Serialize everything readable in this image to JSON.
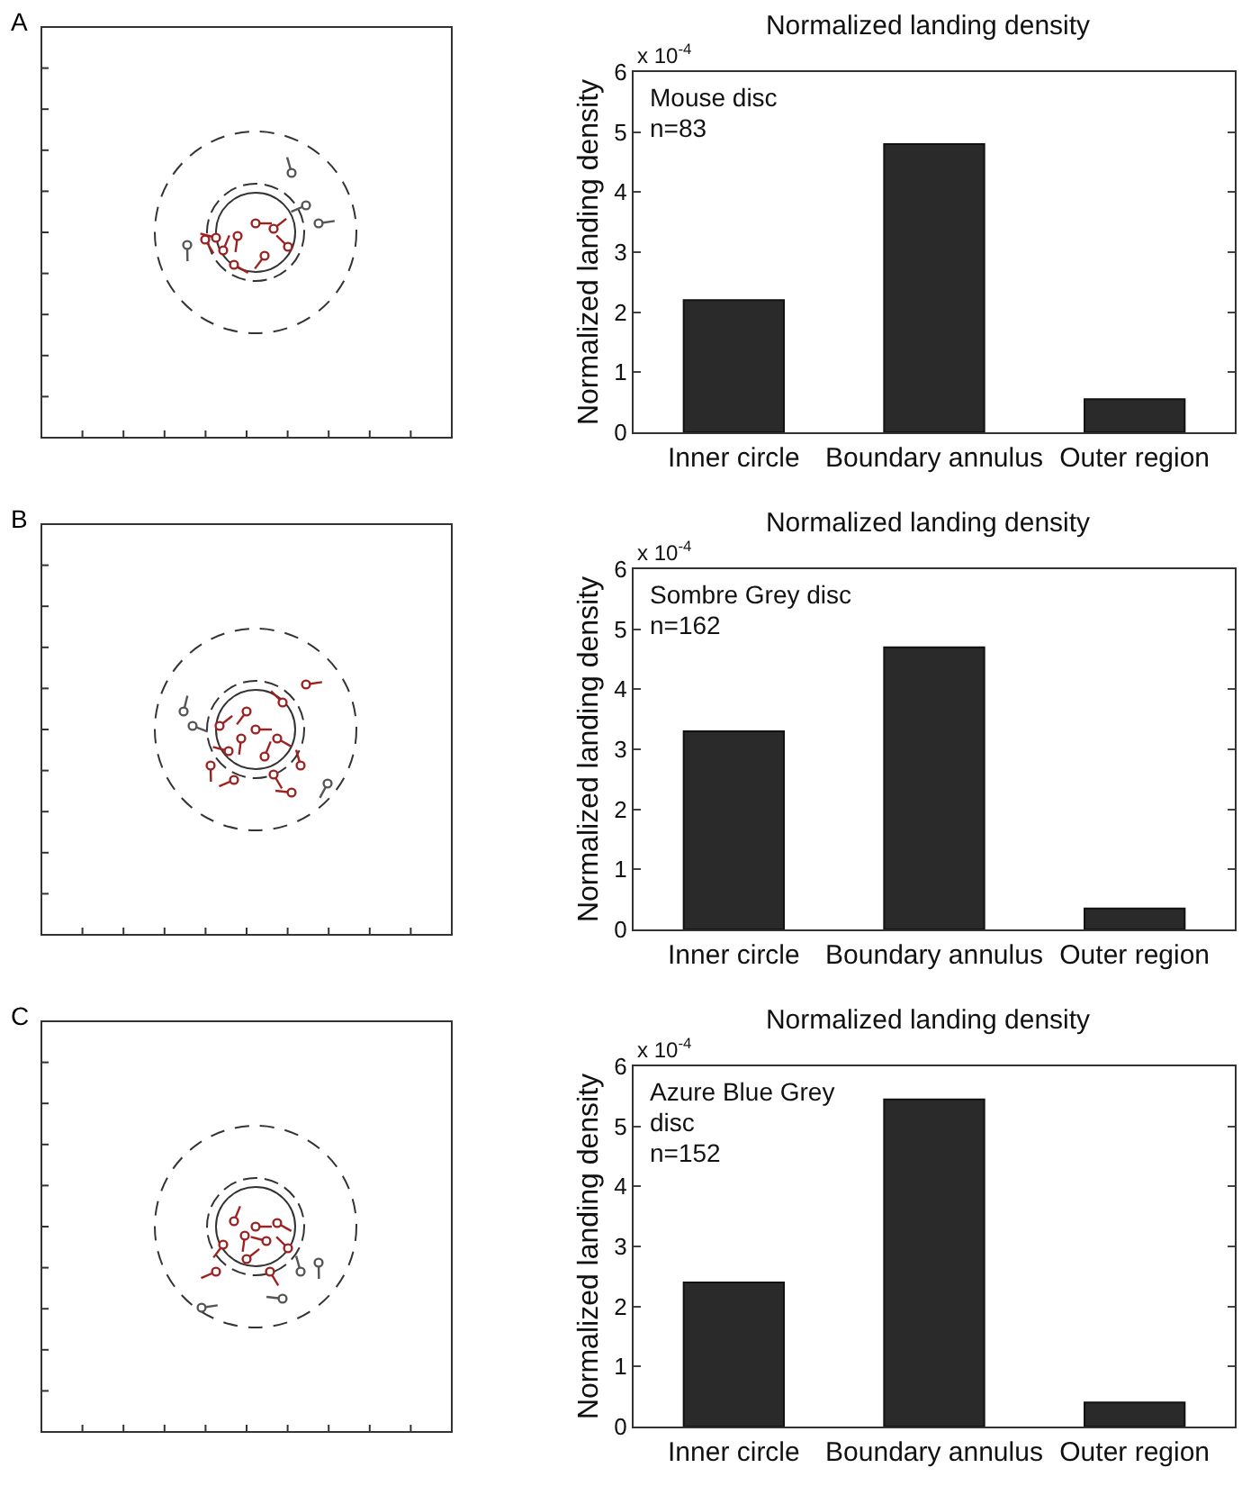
{
  "chart_data": [
    {
      "type": "bar",
      "title": "Normalized landing density",
      "ylabel": "Normalized landing density",
      "annotations": [
        "A",
        "x 10$^{-4}$",
        "Mouse disc",
        "n=83"
      ],
      "categories": [
        "Inner circle",
        "Boundary annulus",
        "Outer region"
      ],
      "values": [
        2.2,
        4.8,
        0.55
      ],
      "color": "#2a2a2a",
      "ylim": [
        0,
        6
      ],
      "yticks": [
        0,
        1,
        2,
        3,
        4,
        5,
        6
      ],
      "grid": false
    },
    {
      "type": "bar",
      "title": "Normalized landing density",
      "ylabel": "Normalized landing density",
      "annotations": [
        "B",
        "x 10$^{-4}$",
        "Sombre Grey disc",
        "n=162"
      ],
      "categories": [
        "Inner circle",
        "Boundary annulus",
        "Outer region"
      ],
      "values": [
        3.3,
        4.7,
        0.35
      ],
      "color": "#2a2a2a",
      "ylim": [
        0,
        6
      ],
      "yticks": [
        0,
        1,
        2,
        3,
        4,
        5,
        6
      ],
      "grid": false
    },
    {
      "type": "bar",
      "title": "Normalized landing density",
      "ylabel": "Normalized landing density",
      "annotations": [
        "C",
        "x 10$^{-4}$",
        "Azure Blue Grey",
        "disc",
        "n=152"
      ],
      "categories": [
        "Inner circle",
        "Boundary annulus",
        "Outer region"
      ],
      "values": [
        2.4,
        5.45,
        0.4
      ],
      "color": "#2a2a2a",
      "ylim": [
        0,
        6
      ],
      "yticks": [
        0,
        1,
        2,
        3,
        4,
        5,
        6
      ],
      "grid": false
    }
  ]
}
